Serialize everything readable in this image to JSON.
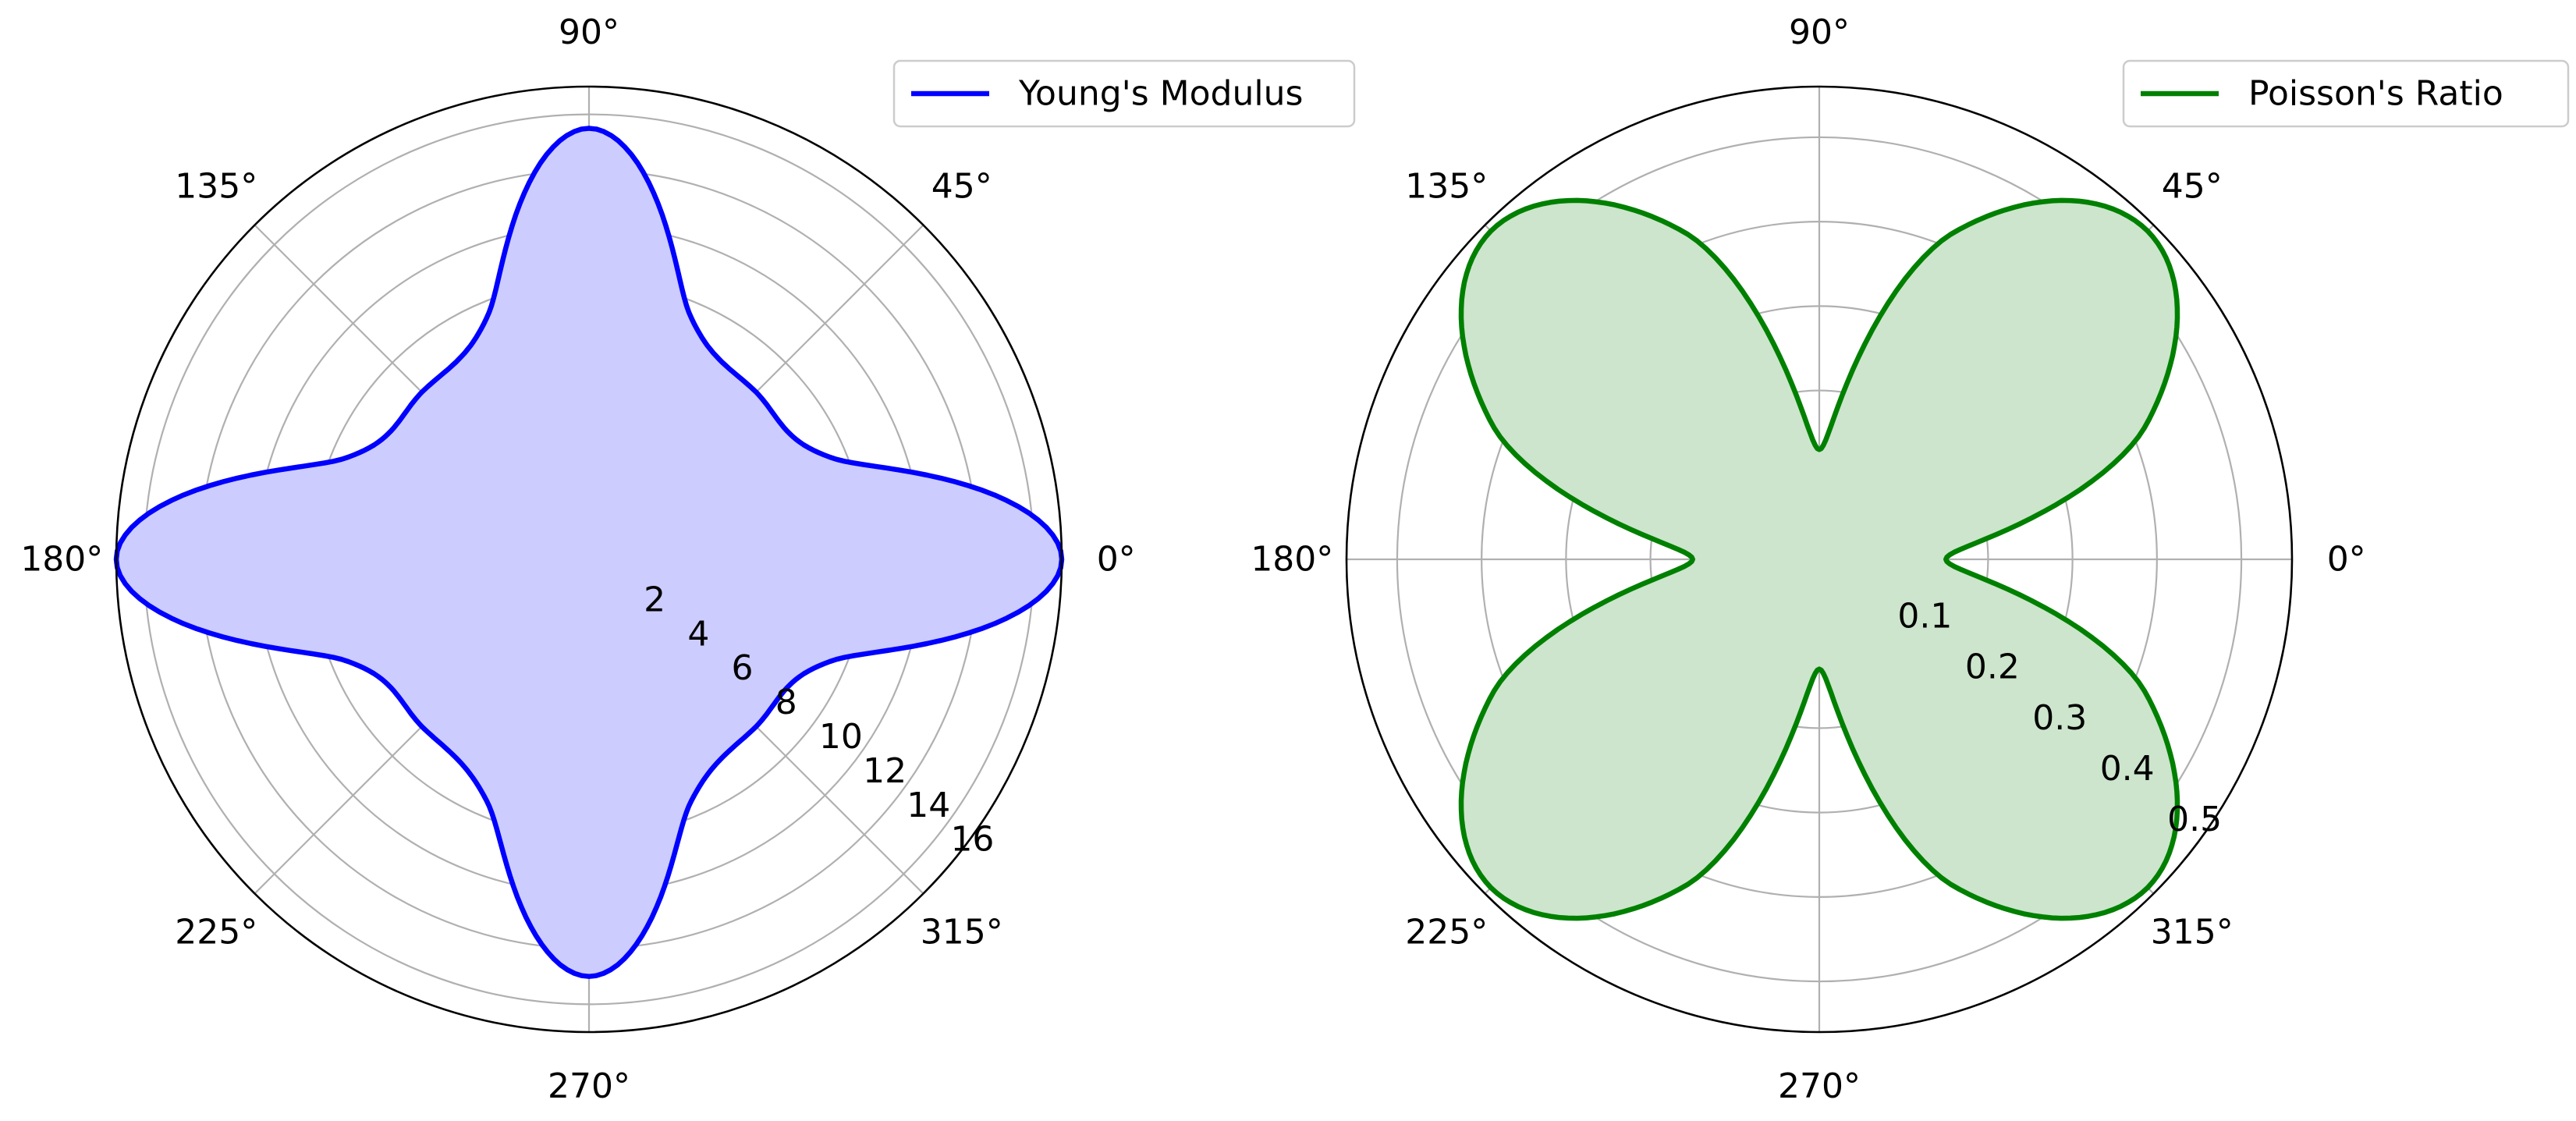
{
  "chart_data": [
    {
      "type": "polar-area",
      "angle_unit": "degrees",
      "theta_ticks": [
        0,
        45,
        90,
        135,
        180,
        225,
        270,
        315
      ],
      "theta_tick_labels": [
        "0°",
        "45°",
        "90°",
        "135°",
        "180°",
        "225°",
        "270°",
        "315°"
      ],
      "r_ticks": [
        2,
        4,
        6,
        8,
        10,
        12,
        14,
        16
      ],
      "r_tick_labels": [
        "2",
        "4",
        "6",
        "8",
        "10",
        "12",
        "14",
        "16"
      ],
      "rlim": [
        0,
        17
      ],
      "grid": true,
      "legend_position": "upper-right",
      "series": [
        {
          "name": "Young's Modulus",
          "color": "#0000ff",
          "fill_color": "#ccccff",
          "theta": [
            0,
            22.5,
            45,
            67.5,
            90,
            112.5,
            135,
            157.5,
            180,
            202.5,
            225,
            247.5,
            270,
            292.5,
            315,
            337.5
          ],
          "r": [
            17.0,
            9.5,
            8.5,
            9.5,
            15.5,
            9.5,
            8.5,
            9.5,
            17.0,
            9.5,
            8.5,
            9.5,
            15.0,
            9.5,
            8.5,
            9.5
          ],
          "description": "four-lobed curve with maxima along the 0°/180° axes (≈17) and 90°/270° axes (≈15), minima ≈8.5 at diagonals"
        }
      ]
    },
    {
      "type": "polar-area",
      "angle_unit": "degrees",
      "theta_ticks": [
        0,
        45,
        90,
        135,
        180,
        225,
        270,
        315
      ],
      "theta_tick_labels": [
        "0°",
        "45°",
        "90°",
        "135°",
        "180°",
        "225°",
        "270°",
        "315°"
      ],
      "r_ticks": [
        0.1,
        0.2,
        0.3,
        0.4,
        0.5
      ],
      "r_tick_labels": [
        "0.1",
        "0.2",
        "0.3",
        "0.4",
        "0.5"
      ],
      "rlim": [
        0,
        0.56
      ],
      "grid": true,
      "legend_position": "upper-right",
      "series": [
        {
          "name": "Poisson's Ratio",
          "color": "#008000",
          "fill_color": "#cce5cc",
          "theta": [
            0,
            22.5,
            45,
            67.5,
            90,
            112.5,
            135,
            157.5,
            180,
            202.5,
            225,
            247.5,
            270,
            292.5,
            315,
            337.5
          ],
          "r": [
            0.15,
            0.42,
            0.55,
            0.42,
            0.13,
            0.42,
            0.55,
            0.42,
            0.15,
            0.42,
            0.55,
            0.42,
            0.13,
            0.42,
            0.55,
            0.42
          ],
          "description": "four-petal curve with maxima ≈0.55 at diagonals and minima ≈0.13–0.15 along the axes"
        }
      ]
    }
  ]
}
